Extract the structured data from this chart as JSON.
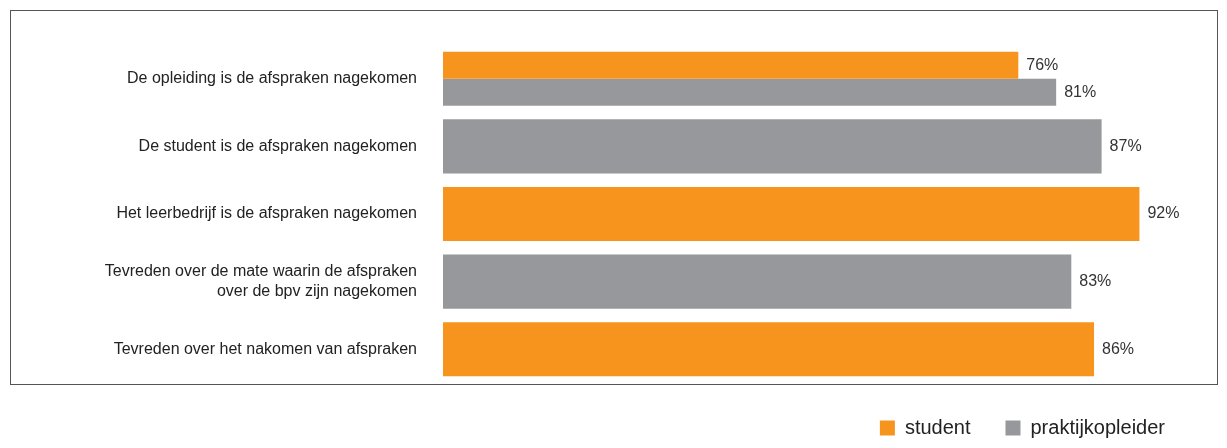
{
  "chart_data": {
    "type": "bar",
    "orientation": "horizontal",
    "categories": [
      "De opleiding is de afspraken nagekomen",
      "De student is de afspraken nagekomen",
      "Het leerbedrijf is de afspraken nagekomen",
      "Tevreden over de mate waarin de afspraken over de bpv zijn nagekomen",
      "Tevreden over het nakomen van afspraken"
    ],
    "series": [
      {
        "name": "student",
        "color": "#f7941d",
        "values": [
          76,
          null,
          92,
          null,
          86
        ],
        "value_labels": [
          "76%",
          null,
          "92%",
          null,
          "86%"
        ]
      },
      {
        "name": "praktijkopleider",
        "color": "#97989b",
        "values": [
          81,
          87,
          null,
          83,
          null
        ],
        "value_labels": [
          "81%",
          "87%",
          null,
          "83%",
          null
        ]
      }
    ],
    "tick_labels": "y",
    "legend": "bottom right"
  }
}
